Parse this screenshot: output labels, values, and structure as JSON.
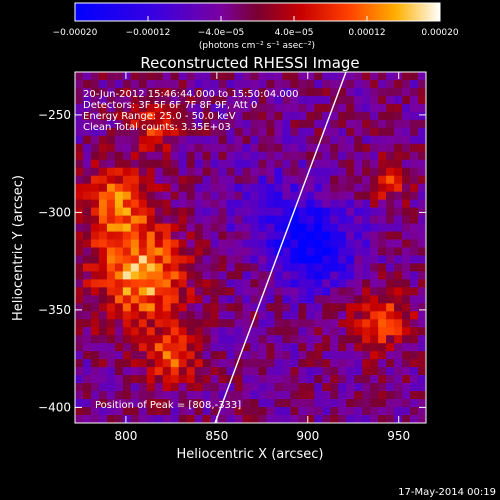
{
  "chart_data": {
    "type": "heatmap",
    "title": "Reconstructed RHESSI Image",
    "xlabel": "Heliocentric X (arcsec)",
    "ylabel": "Heliocentric Y (arcsec)",
    "xlim": [
      772,
      965
    ],
    "ylim": [
      -408,
      -228
    ],
    "x_ticks": [
      800,
      850,
      900,
      950
    ],
    "y_ticks": [
      -250,
      -300,
      -350,
      -400
    ],
    "x_tick_labels": [
      "800",
      "850",
      "900",
      "950"
    ],
    "y_tick_labels": [
      "−250",
      "−300",
      "−350",
      "−400"
    ],
    "colorbar": {
      "range": [
        -0.0002,
        0.0002
      ],
      "tick_values": [
        -0.0002,
        -0.00012,
        -4e-05,
        4e-05,
        0.00012,
        0.0002
      ],
      "tick_labels": [
        "−0.00020",
        "−0.00012",
        "−4.0e−05",
        "4.0e−05",
        "0.00012",
        "0.00020"
      ],
      "unit_label": "(photons cm⁻² s⁻¹ asec⁻²)"
    },
    "annotations": [
      "20-Jun-2012 15:46:44.000 to 15:50:04.000",
      "Detectors: 3F 5F 6F 7F 8F 9F, Att 0",
      "Energy Range: 25.0 - 50.0 keV",
      "Clean     Total counts: 3.35E+03"
    ],
    "peak_label": "Position of Peak = [808,-333]",
    "peak_position": [
      808,
      -333
    ],
    "grid": false,
    "limb_line": [
      [
        849,
        -408
      ],
      [
        921,
        -228
      ]
    ],
    "intensity_sources": [
      {
        "x": 808,
        "y": -333,
        "sigma": 18,
        "amp": 1.0
      },
      {
        "x": 795,
        "y": -295,
        "sigma": 14,
        "amp": 0.75
      },
      {
        "x": 815,
        "y": -255,
        "sigma": 10,
        "amp": 0.55
      },
      {
        "x": 825,
        "y": -375,
        "sigma": 10,
        "amp": 0.7
      },
      {
        "x": 940,
        "y": -355,
        "sigma": 12,
        "amp": 0.65
      },
      {
        "x": 945,
        "y": -285,
        "sigma": 8,
        "amp": 0.55
      },
      {
        "x": 905,
        "y": -318,
        "sigma": 15,
        "amp": -0.85
      },
      {
        "x": 880,
        "y": -300,
        "sigma": 18,
        "amp": -0.35
      }
    ]
  },
  "footer": {
    "date": "17-May-2014 00:19"
  }
}
